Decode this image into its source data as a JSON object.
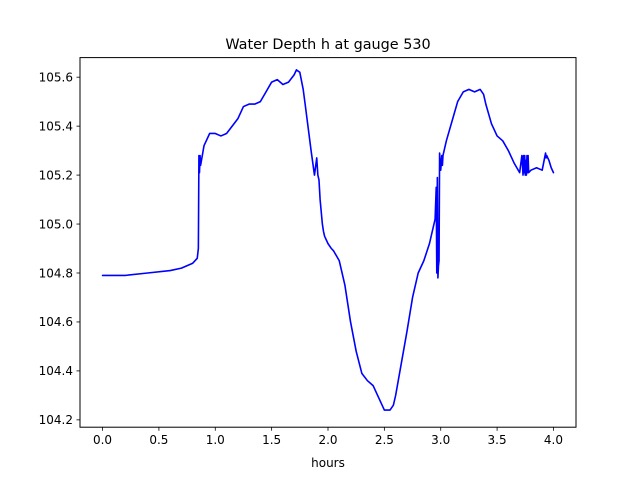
{
  "chart_data": {
    "type": "line",
    "title": "Water Depth h at gauge 530",
    "xlabel": "hours",
    "ylabel": "",
    "xlim": [
      -0.2,
      4.2
    ],
    "ylim": [
      104.17,
      105.68
    ],
    "xticks": [
      "0.0",
      "0.5",
      "1.0",
      "1.5",
      "2.0",
      "2.5",
      "3.0",
      "3.5",
      "4.0"
    ],
    "yticks": [
      "104.2",
      "104.4",
      "104.6",
      "104.8",
      "105.0",
      "105.2",
      "105.4",
      "105.6"
    ],
    "grid": false,
    "series": [
      {
        "color": "#0000ff",
        "x": [
          0.0,
          0.2,
          0.4,
          0.6,
          0.7,
          0.8,
          0.84,
          0.85,
          0.855,
          0.86,
          0.865,
          0.87,
          0.9,
          0.95,
          1.0,
          1.05,
          1.1,
          1.15,
          1.2,
          1.25,
          1.3,
          1.35,
          1.4,
          1.45,
          1.5,
          1.55,
          1.6,
          1.65,
          1.7,
          1.72,
          1.75,
          1.78,
          1.8,
          1.85,
          1.88,
          1.9,
          1.91,
          1.92,
          1.93,
          1.95,
          1.96,
          1.97,
          2.0,
          2.03,
          2.05,
          2.1,
          2.15,
          2.2,
          2.25,
          2.3,
          2.35,
          2.4,
          2.45,
          2.48,
          2.5,
          2.52,
          2.55,
          2.58,
          2.6,
          2.65,
          2.7,
          2.75,
          2.8,
          2.85,
          2.9,
          2.95,
          2.96,
          2.965,
          2.97,
          2.975,
          2.98,
          2.985,
          2.99,
          3.0,
          3.005,
          3.01,
          3.015,
          3.02,
          3.03,
          3.05,
          3.1,
          3.15,
          3.2,
          3.25,
          3.3,
          3.35,
          3.38,
          3.4,
          3.45,
          3.5,
          3.55,
          3.6,
          3.65,
          3.7,
          3.72,
          3.73,
          3.735,
          3.74,
          3.745,
          3.75,
          3.755,
          3.76,
          3.765,
          3.77,
          3.775,
          3.78,
          3.8,
          3.85,
          3.9,
          3.93,
          3.935,
          3.94,
          3.96,
          3.98,
          4.0
        ],
        "y": [
          104.79,
          104.79,
          104.8,
          104.81,
          104.82,
          104.84,
          104.86,
          104.9,
          105.28,
          105.21,
          105.28,
          105.24,
          105.32,
          105.37,
          105.37,
          105.36,
          105.37,
          105.4,
          105.43,
          105.48,
          105.49,
          105.49,
          105.5,
          105.54,
          105.58,
          105.59,
          105.57,
          105.58,
          105.61,
          105.63,
          105.62,
          105.55,
          105.48,
          105.3,
          105.2,
          105.27,
          105.2,
          105.18,
          105.1,
          105.0,
          104.97,
          104.95,
          104.92,
          104.9,
          104.89,
          104.85,
          104.75,
          104.6,
          104.48,
          104.39,
          104.36,
          104.34,
          104.29,
          104.26,
          104.24,
          104.24,
          104.24,
          104.26,
          104.3,
          104.43,
          104.56,
          104.7,
          104.8,
          104.85,
          104.92,
          105.02,
          105.15,
          104.8,
          105.19,
          104.78,
          104.83,
          104.85,
          105.29,
          105.22,
          105.25,
          105.28,
          105.24,
          105.28,
          105.3,
          105.34,
          105.42,
          105.5,
          105.54,
          105.55,
          105.54,
          105.55,
          105.53,
          105.49,
          105.41,
          105.36,
          105.34,
          105.3,
          105.25,
          105.21,
          105.28,
          105.2,
          105.28,
          105.21,
          105.28,
          105.2,
          105.26,
          105.2,
          105.28,
          105.21,
          105.28,
          105.21,
          105.22,
          105.23,
          105.22,
          105.29,
          105.27,
          105.28,
          105.26,
          105.23,
          105.21
        ]
      }
    ]
  }
}
